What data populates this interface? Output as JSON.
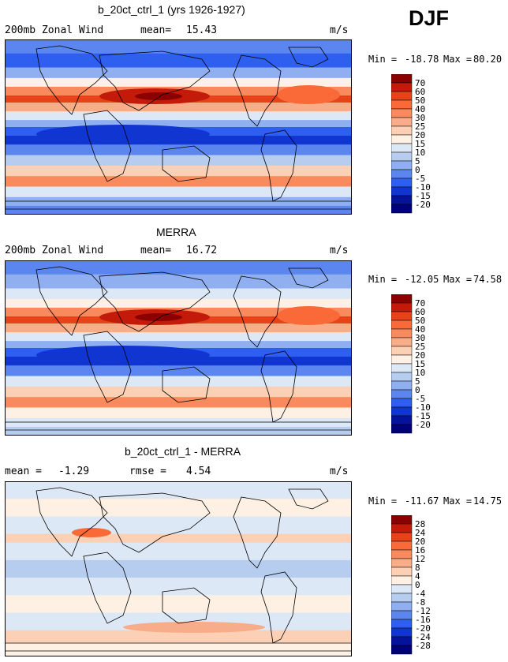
{
  "season": "DJF",
  "chart_data": [
    {
      "type": "heatmap",
      "title": "b_20ct_ctrl_1 (yrs 1926-1927)",
      "variable": "200mb Zonal Wind",
      "stat1_label": "mean=",
      "stat1_value": "15.43",
      "units": "m/s",
      "min_label": "Min =",
      "min_value": "-18.78",
      "max_label": "Max =",
      "max_value": "80.20",
      "colorbar_levels": [
        "70",
        "60",
        "50",
        "40",
        "30",
        "25",
        "20",
        "15",
        "10",
        "5",
        "0",
        "-5",
        "-10",
        "-15",
        "-20"
      ],
      "colorbar_colors": [
        "#8b0000",
        "#c41a0a",
        "#e8421a",
        "#f96a38",
        "#f98a5e",
        "#f8ad8a",
        "#fcd0b4",
        "#fff0e4",
        "#dce8f6",
        "#b6cdef",
        "#8faff0",
        "#5b86ef",
        "#2f5fee",
        "#1035d0",
        "#05139b",
        "#00007a"
      ],
      "bands_description": [
        "subtropical jet maxima red",
        "tropics blue"
      ]
    },
    {
      "type": "heatmap",
      "title": "MERRA",
      "variable": "200mb Zonal Wind",
      "stat1_label": "mean=",
      "stat1_value": "16.72",
      "units": "m/s",
      "min_label": "Min =",
      "min_value": "-12.05",
      "max_label": "Max =",
      "max_value": "74.58",
      "colorbar_levels": [
        "70",
        "60",
        "50",
        "40",
        "30",
        "25",
        "20",
        "15",
        "10",
        "5",
        "0",
        "-5",
        "-10",
        "-15",
        "-20"
      ],
      "colorbar_colors": [
        "#8b0000",
        "#c41a0a",
        "#e8421a",
        "#f96a38",
        "#f98a5e",
        "#f8ad8a",
        "#fcd0b4",
        "#fff0e4",
        "#dce8f6",
        "#b6cdef",
        "#8faff0",
        "#5b86ef",
        "#2f5fee",
        "#1035d0",
        "#05139b",
        "#00007a"
      ]
    },
    {
      "type": "heatmap",
      "title": "b_20ct_ctrl_1 - MERRA",
      "stat1_label": "mean =",
      "stat1_value": "-1.29",
      "stat2_label": "rmse =",
      "stat2_value": "4.54",
      "units": "m/s",
      "min_label": "Min =",
      "min_value": "-11.67",
      "max_label": "Max =",
      "max_value": "14.75",
      "colorbar_levels": [
        "28",
        "24",
        "20",
        "16",
        "12",
        "8",
        "4",
        "0",
        "-4",
        "-8",
        "-12",
        "-16",
        "-20",
        "-24",
        "-28"
      ],
      "colorbar_colors": [
        "#8b0000",
        "#c41a0a",
        "#e8421a",
        "#f96a38",
        "#f98a5e",
        "#f8ad8a",
        "#fcd0b4",
        "#fff0e4",
        "#dce8f6",
        "#b6cdef",
        "#8faff0",
        "#5b86ef",
        "#2f5fee",
        "#1035d0",
        "#05139b",
        "#00007a"
      ]
    }
  ]
}
